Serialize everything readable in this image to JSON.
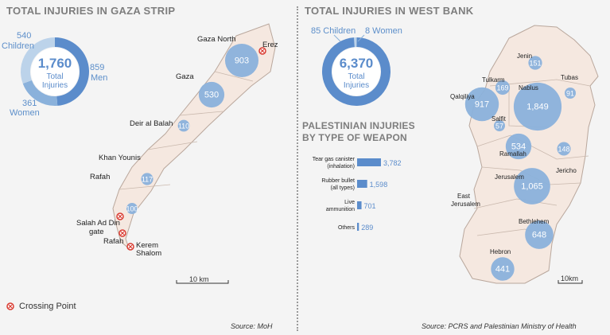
{
  "gaza": {
    "title": "TOTAL INJURIES IN GAZA STRIP",
    "total": "1,760",
    "total_label_1": "Total",
    "total_label_2": "Injuries",
    "children_value": "540",
    "children_label": "Children",
    "men_value": "859",
    "men_label": "Men",
    "women_value": "361",
    "women_label": "Women",
    "source": "Source: MoH",
    "scale": "10 km",
    "legend": "Crossing Point"
  },
  "westbank": {
    "title": "TOTAL INJURIES IN WEST BANK",
    "total": "6,370",
    "total_label_1": "Total",
    "total_label_2": "Injuries",
    "children_label": "85 Children",
    "women_label": "8 Women",
    "source": "Source: PCRS and Palestinian Ministry of Health",
    "scale": "10km"
  },
  "weapon": {
    "title_1": "PALESTINIAN INJURIES",
    "title_2": "BY TYPE OF WEAPON"
  },
  "colors": {
    "dark_blue": "#5b8ccb",
    "mid_blue": "#8ab1db",
    "light_blue": "#bcd3ea",
    "map_fill": "#f5e8e0",
    "map_stroke": "#b9a79c",
    "crossing": "#d93a30"
  },
  "chart_data": [
    {
      "type": "pie",
      "title": "TOTAL INJURIES IN GAZA STRIP",
      "categories": [
        "Men",
        "Women",
        "Children"
      ],
      "values": [
        859,
        361,
        540
      ],
      "total": 1760
    },
    {
      "type": "pie",
      "title": "TOTAL INJURIES IN WEST BANK",
      "categories": [
        "Children",
        "Women",
        "Other"
      ],
      "values": [
        85,
        8,
        6277
      ],
      "total": 6370
    },
    {
      "type": "bar",
      "title": "PALESTINIAN INJURIES BY TYPE OF WEAPON",
      "categories": [
        "Tear gas canister (inhalation)",
        "Rubber bullet (all types)",
        "Live ammunition",
        "Others"
      ],
      "cat_lines": [
        [
          "Tear gas canister",
          "(inhalation)"
        ],
        [
          "Rubber bullet",
          "(all types)"
        ],
        [
          "Live",
          "ammunition"
        ],
        [
          "Others"
        ]
      ],
      "values": [
        3782,
        1598,
        701,
        289
      ],
      "value_labels": [
        "3,782",
        "1,598",
        "701",
        "289"
      ]
    },
    {
      "type": "scatter",
      "title": "Gaza Strip injuries by location",
      "points": [
        {
          "name": "Gaza North",
          "value": 903
        },
        {
          "name": "Gaza",
          "value": 530
        },
        {
          "name": "Deir al Balah",
          "value": 110
        },
        {
          "name": "Khan Younis",
          "value": 117
        },
        {
          "name": "Rafah",
          "value": 100
        }
      ],
      "crossings": [
        "Erez",
        "Salah Ad Din gate",
        "Rafah",
        "Kerem Shalom"
      ]
    },
    {
      "type": "scatter",
      "title": "West Bank injuries by governorate",
      "points": [
        {
          "name": "Jenin",
          "value": 151
        },
        {
          "name": "Tubas",
          "value": 91
        },
        {
          "name": "Tulkarm",
          "value": 169
        },
        {
          "name": "Nablus",
          "value": 1849
        },
        {
          "name": "Qalqiliya",
          "value": 917
        },
        {
          "name": "Salfit",
          "value": 57
        },
        {
          "name": "Ramallah",
          "value": 534
        },
        {
          "name": "Jericho",
          "value": 148
        },
        {
          "name": "Jerusalem",
          "value": 1065
        },
        {
          "name": "East Jerusalem",
          "value": null
        },
        {
          "name": "Bethlehem",
          "value": 648
        },
        {
          "name": "Hebron",
          "value": 441
        }
      ]
    }
  ]
}
